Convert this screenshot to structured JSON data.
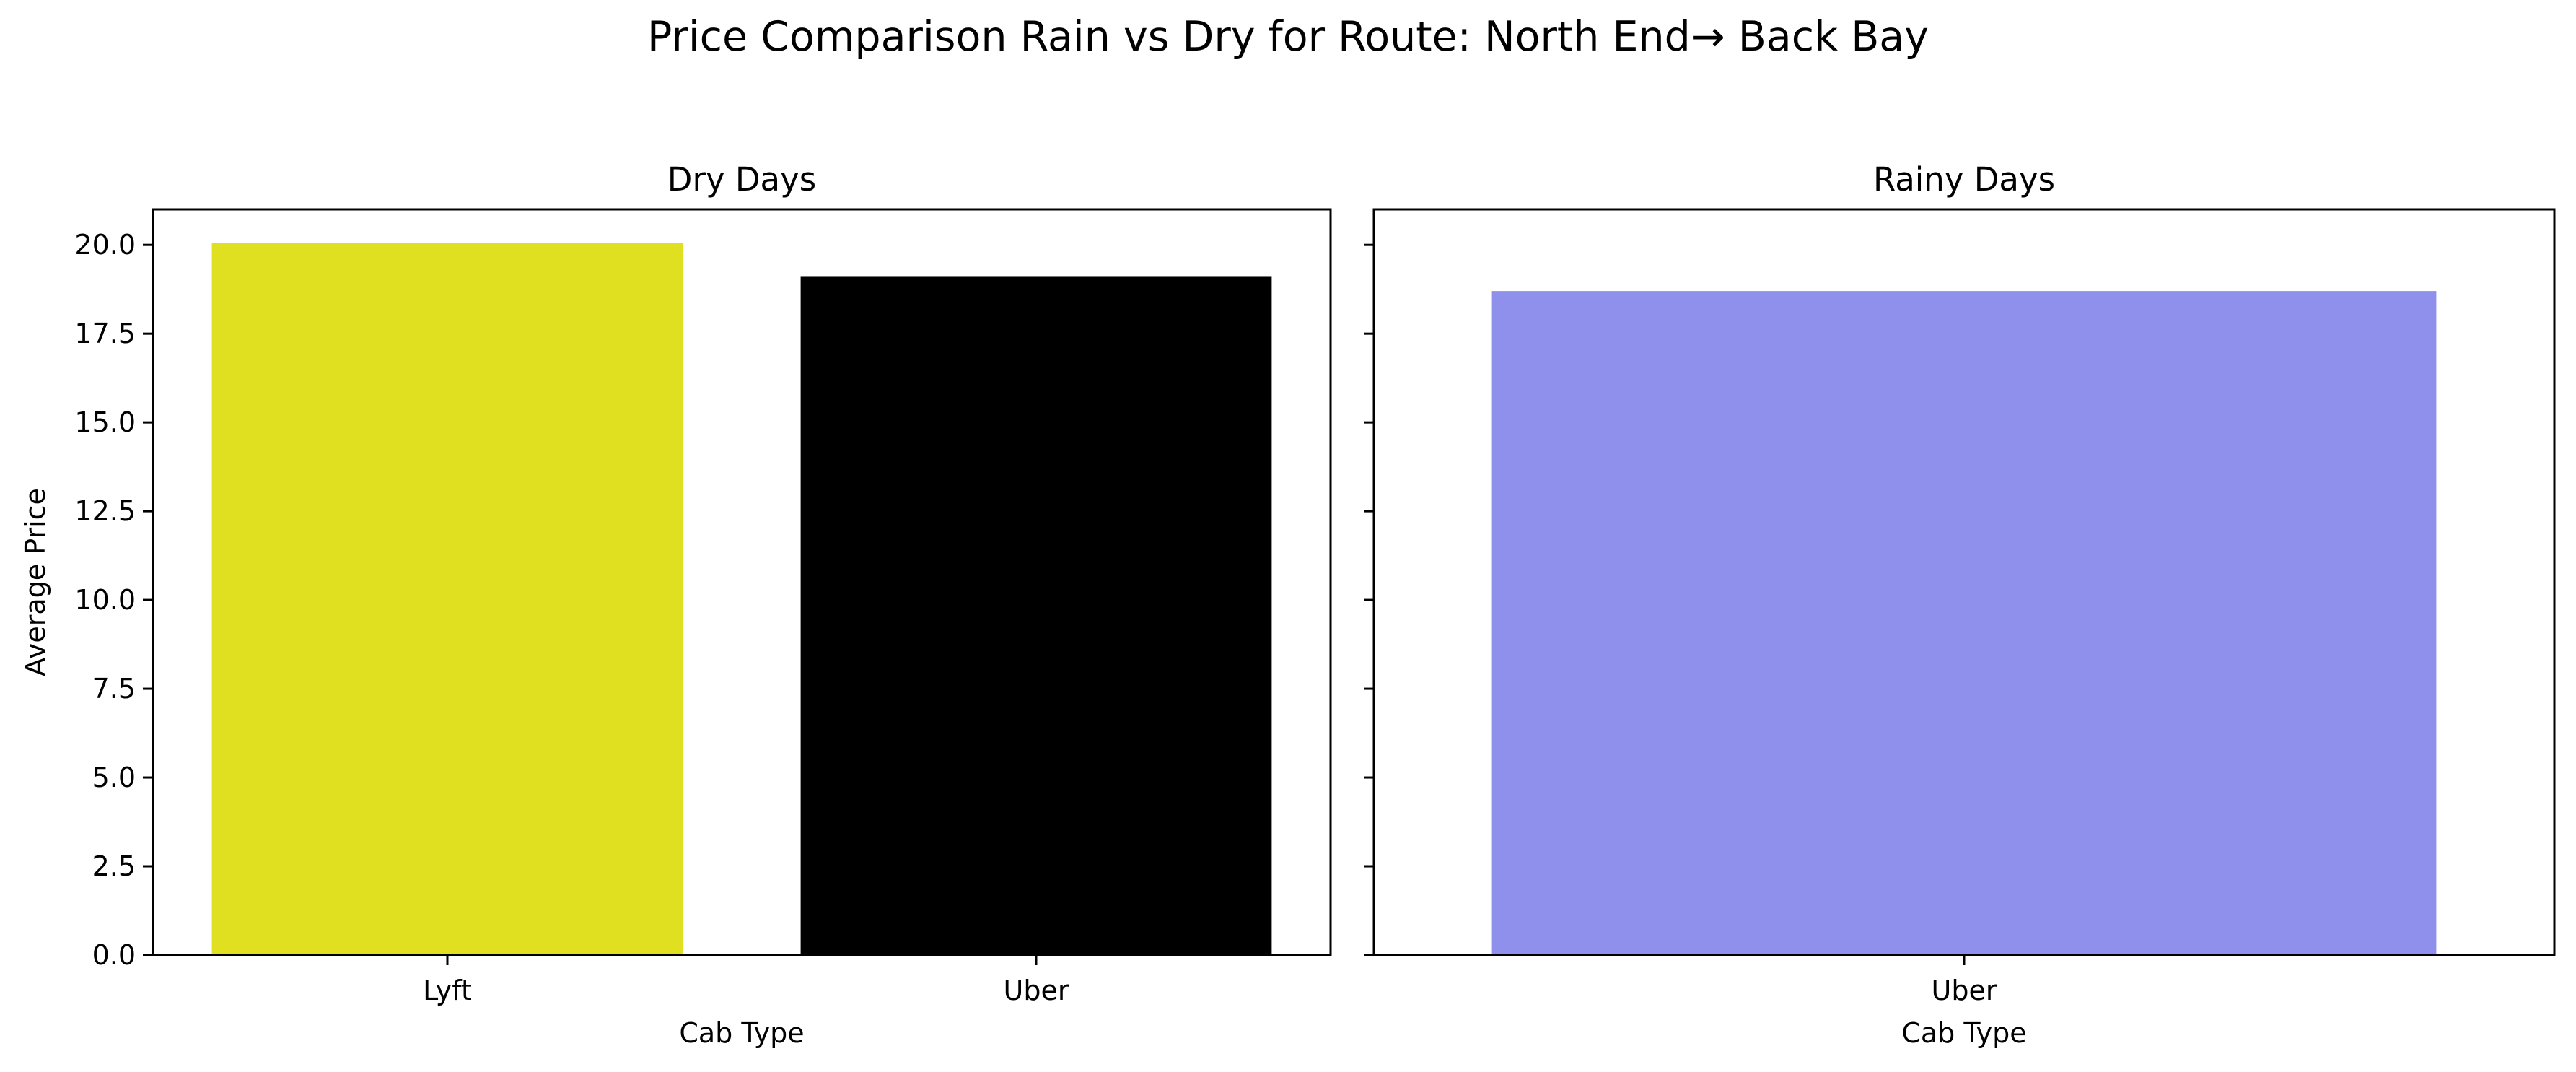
{
  "chart_data": {
    "title": "Price Comparison Rain vs Dry for Route: North End→ Back Bay",
    "panels": [
      {
        "type": "bar",
        "title": "Dry Days",
        "xlabel": "Cab Type",
        "ylabel": "Average Price",
        "categories": [
          "Lyft",
          "Uber"
        ],
        "values": [
          20.05,
          19.1
        ],
        "colors": [
          "#e0e020",
          "#000000"
        ],
        "ylim": [
          0,
          21.0
        ],
        "yticks": [
          0.0,
          2.5,
          5.0,
          7.5,
          10.0,
          12.5,
          15.0,
          17.5,
          20.0
        ],
        "ytick_labels": [
          "0.0",
          "2.5",
          "5.0",
          "7.5",
          "10.0",
          "12.5",
          "15.0",
          "17.5",
          "20.0"
        ],
        "grid": false
      },
      {
        "type": "bar",
        "title": "Rainy Days",
        "xlabel": "Cab Type",
        "ylabel": "",
        "categories": [
          "Uber"
        ],
        "values": [
          18.7
        ],
        "colors": [
          "#8f8fec"
        ],
        "ylim": [
          0,
          21.0
        ],
        "yticks": [
          0.0,
          2.5,
          5.0,
          7.5,
          10.0,
          12.5,
          15.0,
          17.5,
          20.0
        ],
        "ytick_labels": [],
        "shared_y": true,
        "grid": false
      }
    ]
  }
}
